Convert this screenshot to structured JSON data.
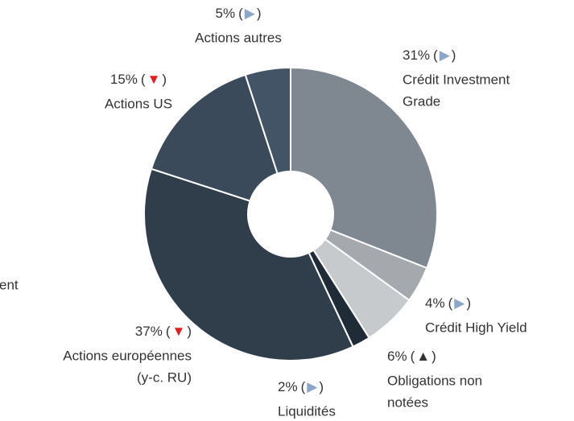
{
  "chart_data": {
    "type": "donut",
    "categories": [
      [
        "Crédit Investment",
        "Grade"
      ],
      [
        "Crédit High Yield"
      ],
      [
        "Obligations non",
        "notées"
      ],
      [
        "Liquidités"
      ],
      [
        "Actions européennes",
        "(y-c. RU)"
      ],
      [
        "Actions US"
      ],
      [
        "Actions autres"
      ]
    ],
    "values": [
      31,
      4,
      6,
      2,
      37,
      15,
      5
    ],
    "value_labels": [
      "31%",
      "4%",
      "6%",
      "2%",
      "37%",
      "15%",
      "5%"
    ],
    "colors": [
      "#7f8791",
      "#a5a9ae",
      "#c7cacd",
      "#1f2b36",
      "#303e4c",
      "#3a4a5a",
      "#435467"
    ],
    "paren_open": "(",
    "paren_close": ")",
    "arrows": [
      "▶",
      "▶",
      "▲",
      "▶",
      "▼",
      "▼",
      "▶"
    ],
    "arrow_colors": [
      "#8ba6c6",
      "#8ba6c6",
      "#333333",
      "#8ba6c6",
      "#e0201f",
      "#e0201f",
      "#8ba6c6"
    ],
    "annotation": "ent"
  }
}
